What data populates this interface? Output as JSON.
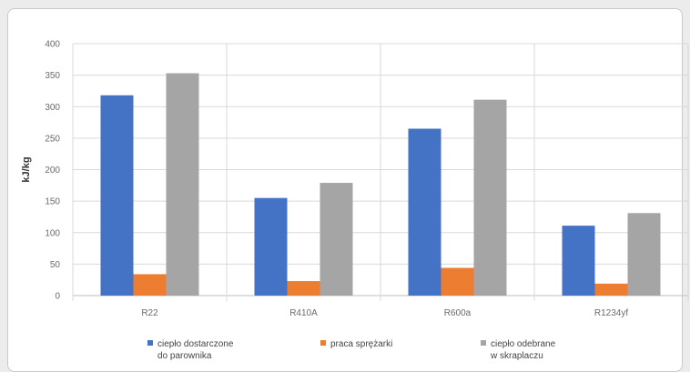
{
  "chart_data": {
    "type": "bar",
    "title": "",
    "xlabel": "",
    "ylabel": "kJ/kg",
    "ylim": [
      0,
      400
    ],
    "yticks": [
      0,
      50,
      100,
      150,
      200,
      250,
      300,
      350,
      400
    ],
    "grid": true,
    "legend_position": "bottom",
    "categories": [
      "R22",
      "R410A",
      "R600a",
      "R1234yf"
    ],
    "series": [
      {
        "name": "ciepło dostarczone do parownika",
        "color": "#4472c4",
        "values": [
          318,
          155,
          265,
          111
        ]
      },
      {
        "name": "praca sprężarki",
        "color": "#ed7d31",
        "values": [
          34,
          23,
          44,
          19
        ]
      },
      {
        "name": "ciepło odebrane w skraplaczu",
        "color": "#a5a5a5",
        "values": [
          353,
          179,
          311,
          131
        ]
      }
    ]
  }
}
